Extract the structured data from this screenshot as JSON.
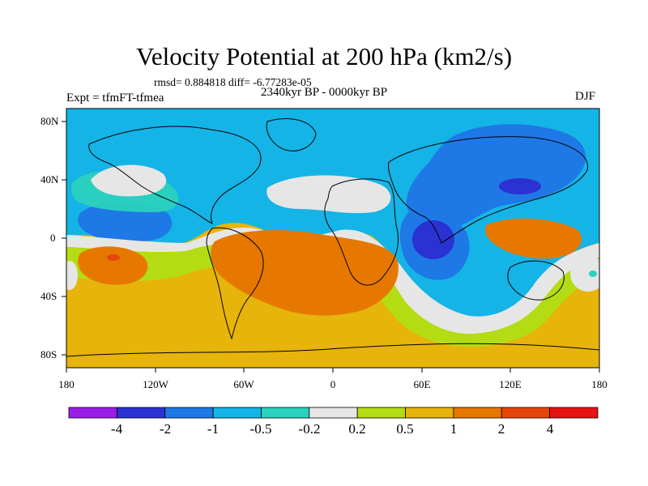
{
  "title": "Velocity Potential at 200 hPa (km2/s)",
  "stats": "rmsd= 0.884818 diff= -6.77283e-05",
  "period": "2340kyr BP - 0000kyr BP",
  "experiment": "Expt = tfmFT-tfmea",
  "season": "DJF",
  "lat_labels": [
    "80N",
    "40N",
    "0",
    "40S",
    "80S"
  ],
  "lon_labels": [
    "180",
    "120W",
    "60W",
    "0",
    "60E",
    "120E",
    "180"
  ],
  "colorbar": {
    "colors": [
      "#9b1ee6",
      "#2a32d2",
      "#1e78e6",
      "#14b4e6",
      "#2ad2be",
      "#e6e6e6",
      "#b4dc14",
      "#e6b40a",
      "#e67800",
      "#e6460a",
      "#e61414"
    ],
    "labels": [
      "-4",
      "-2",
      "-1",
      "-0.5",
      "-0.2",
      "0.2",
      "0.5",
      "1",
      "2",
      "4"
    ]
  }
}
